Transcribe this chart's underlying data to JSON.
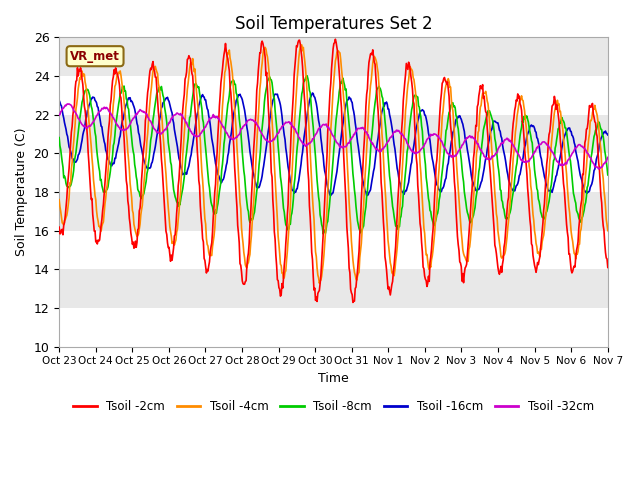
{
  "title": "Soil Temperatures Set 2",
  "xlabel": "Time",
  "ylabel": "Soil Temperature (C)",
  "ylim": [
    10,
    26
  ],
  "yticks": [
    10,
    12,
    14,
    16,
    18,
    20,
    22,
    24,
    26
  ],
  "xtick_labels": [
    "Oct 23",
    "Oct 24",
    "Oct 25",
    "Oct 26",
    "Oct 27",
    "Oct 28",
    "Oct 29",
    "Oct 30",
    "Oct 31",
    "Nov 1",
    "Nov 2",
    "Nov 3",
    "Nov 4",
    "Nov 5",
    "Nov 6",
    "Nov 7"
  ],
  "colors": {
    "Tsoil -2cm": "#ff0000",
    "Tsoil -4cm": "#ff8c00",
    "Tsoil -8cm": "#00cc00",
    "Tsoil -16cm": "#0000cc",
    "Tsoil -32cm": "#cc00cc"
  },
  "legend_label": "VR_met",
  "bg_color": "#e8e8e8",
  "line_width": 1.2,
  "n_days": 15,
  "n_per_day": 48
}
